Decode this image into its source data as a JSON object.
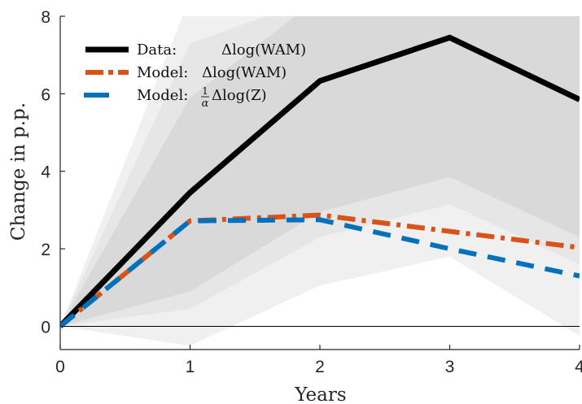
{
  "chart_data": {
    "type": "line",
    "title": "",
    "xlabel": "Years",
    "ylabel": "Change in p.p.",
    "xlim": [
      0,
      4
    ],
    "ylim": [
      -0.6,
      8
    ],
    "x_ticks": [
      "0",
      "1",
      "2",
      "3",
      "4"
    ],
    "y_ticks": [
      "0",
      "2",
      "4",
      "6",
      "8"
    ],
    "x": [
      0,
      1,
      2,
      3,
      4
    ],
    "grid": false,
    "legend_position": "top-left",
    "series": [
      {
        "name": "Data: Δlog(WAM)",
        "legend_prefix": "Data:",
        "legend_math": "Δlog(WAM)",
        "values": [
          0,
          3.45,
          6.33,
          7.45,
          5.85
        ],
        "color": "#000000",
        "style": "solid"
      },
      {
        "name": "Model: Δlog(WAM)",
        "legend_prefix": "Model:",
        "legend_math": "Δlog(WAM)",
        "values": [
          0,
          2.72,
          2.87,
          2.45,
          2.03
        ],
        "color": "#D95319",
        "style": "dashdot"
      },
      {
        "name": "Model: (1/α)Δlog(Z)",
        "legend_prefix": "Model:",
        "legend_fraction_num": "1",
        "legend_fraction_den": "α",
        "legend_math": "Δlog(Z)",
        "values": [
          0,
          2.72,
          2.75,
          2.0,
          1.3
        ],
        "color": "#0072BD",
        "style": "dashed"
      }
    ],
    "confidence_bands": [
      {
        "lower": [
          0,
          -0.5,
          1.05,
          1.8,
          -0.25
        ],
        "upper": [
          0,
          8.5,
          8.5,
          8.5,
          8.5
        ],
        "color": "#f0f0f0"
      },
      {
        "lower": [
          0,
          0.45,
          2.3,
          3.15,
          1.6
        ],
        "upper": [
          0,
          7.3,
          8.5,
          8.5,
          8.5
        ],
        "color": "#e6e6e6"
      },
      {
        "lower": [
          0,
          0.9,
          2.95,
          3.85,
          2.3
        ],
        "upper": [
          0,
          5.9,
          8.5,
          8.5,
          8.5
        ],
        "color": "#d9d9d9"
      }
    ]
  }
}
